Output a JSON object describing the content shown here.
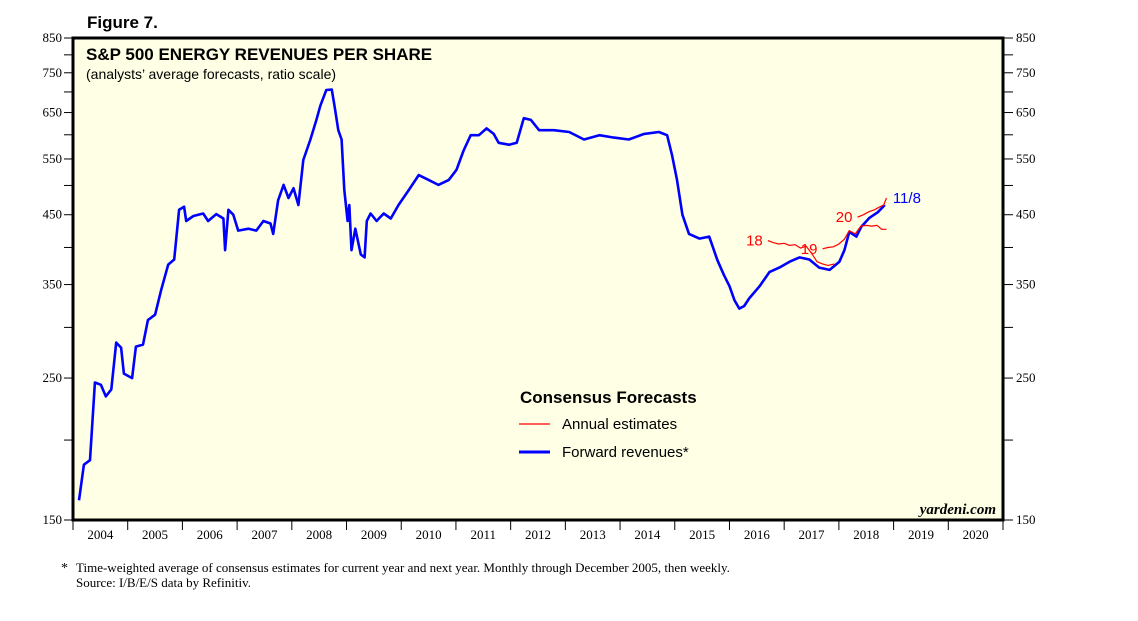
{
  "figure_label": "Figure 7.",
  "chart_data": {
    "type": "line",
    "title": "S&P 500 ENERGY REVENUES PER SHARE",
    "subtitle": "(analysts’ average forecasts, ratio scale)",
    "y_scale": "log",
    "ylim": [
      150,
      850
    ],
    "y_tick_labels": [
      "150",
      "250",
      "350",
      "450",
      "550",
      "650",
      "750",
      "850"
    ],
    "y_axes": [
      "left",
      "right"
    ],
    "xlim": [
      2004,
      2021
    ],
    "x_tick_labels": [
      "2004",
      "2005",
      "2006",
      "2007",
      "2008",
      "2009",
      "2010",
      "2011",
      "2012",
      "2013",
      "2014",
      "2015",
      "2016",
      "2017",
      "2018",
      "2019",
      "2020"
    ],
    "grid": false,
    "background_color": "#ffffe6",
    "legend": {
      "title": "Consensus Forecasts",
      "placement": "center-bottom",
      "entries": [
        {
          "label": "Annual estimates",
          "color": "#ff0000"
        },
        {
          "label": "Forward revenues*",
          "color": "#0000ff"
        }
      ]
    },
    "series": [
      {
        "name": "Forward revenues*",
        "color": "#0000ff",
        "end_label": "11/8",
        "points": [
          [
            2004.11,
            161
          ],
          [
            2004.2,
            183
          ],
          [
            2004.31,
            186
          ],
          [
            2004.4,
            246
          ],
          [
            2004.51,
            244
          ],
          [
            2004.6,
            234
          ],
          [
            2004.7,
            240
          ],
          [
            2004.79,
            284
          ],
          [
            2004.88,
            279
          ],
          [
            2004.93,
            254
          ],
          [
            2005.08,
            250
          ],
          [
            2005.15,
            280
          ],
          [
            2005.28,
            282
          ],
          [
            2005.37,
            308
          ],
          [
            2005.5,
            314
          ],
          [
            2005.61,
            343
          ],
          [
            2005.74,
            376
          ],
          [
            2005.85,
            383
          ],
          [
            2005.94,
            458
          ],
          [
            2006.03,
            463
          ],
          [
            2006.07,
            440
          ],
          [
            2006.2,
            448
          ],
          [
            2006.38,
            452
          ],
          [
            2006.47,
            440
          ],
          [
            2006.62,
            451
          ],
          [
            2006.75,
            444
          ],
          [
            2006.78,
            396
          ],
          [
            2006.84,
            458
          ],
          [
            2006.93,
            450
          ],
          [
            2007.02,
            425
          ],
          [
            2007.21,
            428
          ],
          [
            2007.35,
            425
          ],
          [
            2007.48,
            440
          ],
          [
            2007.61,
            436
          ],
          [
            2007.66,
            420
          ],
          [
            2007.75,
            474
          ],
          [
            2007.85,
            501
          ],
          [
            2007.94,
            478
          ],
          [
            2008.03,
            495
          ],
          [
            2008.12,
            466
          ],
          [
            2008.21,
            548
          ],
          [
            2008.27,
            567
          ],
          [
            2008.34,
            590
          ],
          [
            2008.45,
            633
          ],
          [
            2008.52,
            666
          ],
          [
            2008.63,
            705
          ],
          [
            2008.73,
            706
          ],
          [
            2008.78,
            666
          ],
          [
            2008.85,
            610
          ],
          [
            2008.91,
            590
          ],
          [
            2008.96,
            492
          ],
          [
            2009.02,
            440
          ],
          [
            2009.05,
            466
          ],
          [
            2009.09,
            396
          ],
          [
            2009.16,
            428
          ],
          [
            2009.26,
            390
          ],
          [
            2009.33,
            386
          ],
          [
            2009.37,
            440
          ],
          [
            2009.44,
            452
          ],
          [
            2009.55,
            440
          ],
          [
            2009.68,
            452
          ],
          [
            2009.81,
            444
          ],
          [
            2009.95,
            466
          ],
          [
            2010.14,
            492
          ],
          [
            2010.32,
            519
          ],
          [
            2010.5,
            510
          ],
          [
            2010.68,
            501
          ],
          [
            2010.87,
            510
          ],
          [
            2011.01,
            529
          ],
          [
            2011.14,
            567
          ],
          [
            2011.27,
            599
          ],
          [
            2011.42,
            599
          ],
          [
            2011.56,
            614
          ],
          [
            2011.69,
            602
          ],
          [
            2011.78,
            583
          ],
          [
            2011.97,
            579
          ],
          [
            2012.11,
            583
          ],
          [
            2012.24,
            637
          ],
          [
            2012.37,
            633
          ],
          [
            2012.52,
            610
          ],
          [
            2012.79,
            610
          ],
          [
            2013.07,
            606
          ],
          [
            2013.34,
            590
          ],
          [
            2013.62,
            599
          ],
          [
            2013.89,
            594
          ],
          [
            2014.16,
            590
          ],
          [
            2014.44,
            602
          ],
          [
            2014.71,
            606
          ],
          [
            2014.86,
            599
          ],
          [
            2014.95,
            558
          ],
          [
            2015.04,
            510
          ],
          [
            2015.14,
            450
          ],
          [
            2015.26,
            420
          ],
          [
            2015.45,
            413
          ],
          [
            2015.63,
            416
          ],
          [
            2015.78,
            382
          ],
          [
            2015.9,
            362
          ],
          [
            2016.0,
            348
          ],
          [
            2016.09,
            331
          ],
          [
            2016.18,
            321
          ],
          [
            2016.27,
            324
          ],
          [
            2016.36,
            333
          ],
          [
            2016.55,
            348
          ],
          [
            2016.73,
            366
          ],
          [
            2016.91,
            372
          ],
          [
            2017.1,
            380
          ],
          [
            2017.28,
            386
          ],
          [
            2017.46,
            383
          ],
          [
            2017.64,
            372
          ],
          [
            2017.83,
            369
          ],
          [
            2018.01,
            380
          ],
          [
            2018.1,
            396
          ],
          [
            2018.19,
            423
          ],
          [
            2018.32,
            416
          ],
          [
            2018.41,
            431
          ],
          [
            2018.56,
            445
          ],
          [
            2018.71,
            454
          ],
          [
            2018.84,
            466
          ]
        ]
      },
      {
        "name": "18",
        "color": "#ff0000",
        "points": [
          [
            2016.7,
            410
          ],
          [
            2016.8,
            407
          ],
          [
            2016.9,
            405
          ],
          [
            2017.0,
            406
          ],
          [
            2017.1,
            403
          ],
          [
            2017.2,
            404
          ],
          [
            2017.3,
            399
          ],
          [
            2017.4,
            402
          ],
          [
            2017.5,
            392
          ],
          [
            2017.6,
            380
          ],
          [
            2017.7,
            377
          ],
          [
            2017.8,
            375
          ],
          [
            2017.92,
            377
          ]
        ]
      },
      {
        "name": "19",
        "color": "#ff0000",
        "points": [
          [
            2017.7,
            398
          ],
          [
            2017.8,
            400
          ],
          [
            2017.9,
            401
          ],
          [
            2018.0,
            405
          ],
          [
            2018.1,
            412
          ],
          [
            2018.19,
            425
          ],
          [
            2018.3,
            420
          ],
          [
            2018.4,
            432
          ],
          [
            2018.5,
            433
          ],
          [
            2018.6,
            432
          ],
          [
            2018.7,
            433
          ],
          [
            2018.78,
            427
          ],
          [
            2018.87,
            427
          ]
        ]
      },
      {
        "name": "20",
        "color": "#ff0000",
        "points": [
          [
            2018.34,
            446
          ],
          [
            2018.45,
            450
          ],
          [
            2018.55,
            455
          ],
          [
            2018.65,
            458
          ],
          [
            2018.75,
            463
          ],
          [
            2018.82,
            466
          ],
          [
            2018.87,
            478
          ]
        ]
      }
    ]
  },
  "watermark": "yardeni.com",
  "footnote": {
    "marker": "*",
    "text": "Time-weighted average of consensus estimates for current year and next year. Monthly through December 2005, then weekly.",
    "source": "Source: I/B/E/S data by Refinitiv."
  }
}
